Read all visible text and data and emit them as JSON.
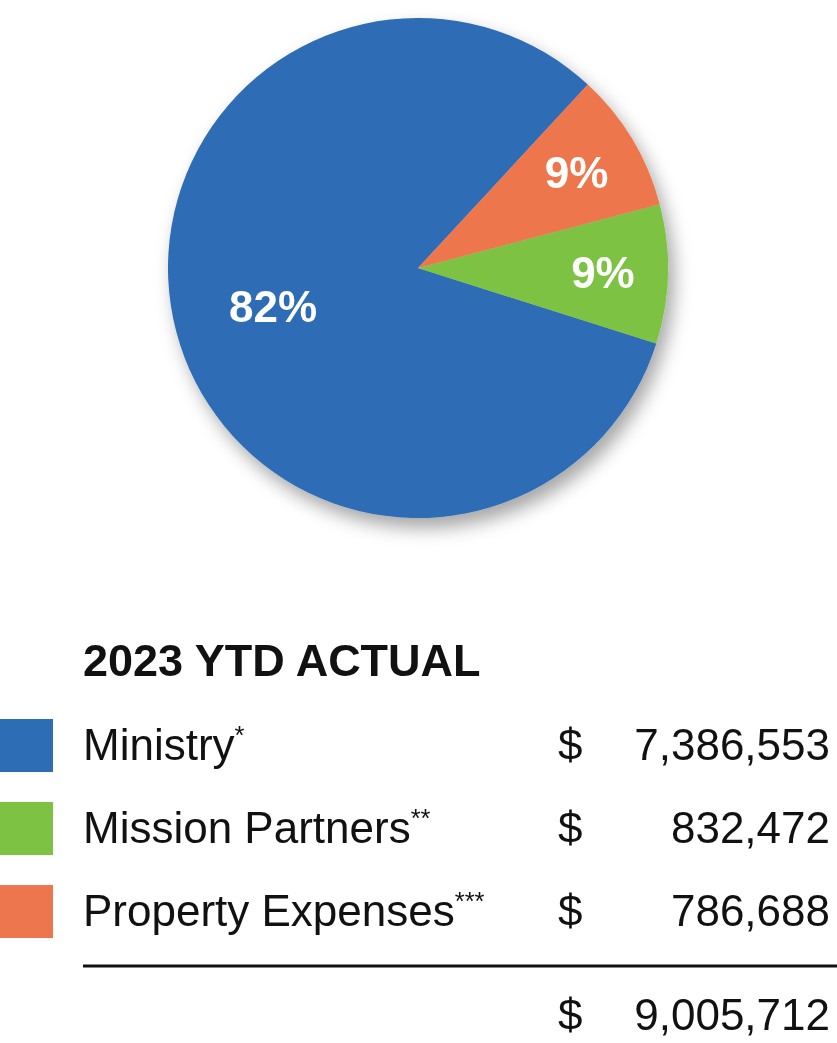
{
  "chart_data": {
    "type": "pie",
    "categories": [
      "Ministry$^{*}$",
      "Mission Partners$^{**}$",
      "Property Expenses$^{***}$"
    ],
    "values": [
      82,
      9,
      9
    ],
    "colors": [
      "#2d6db5",
      "#7dc243",
      "#ee764e"
    ],
    "value_labels": [
      "82%",
      "9%",
      "9%"
    ],
    "legend": "bottom",
    "legend_title": "2023 YTD ACTUAL",
    "annotations": [
      "$ 7,386,553",
      "$ 832,472",
      "$ 786,688",
      "$ 9,005,712"
    ]
  }
}
